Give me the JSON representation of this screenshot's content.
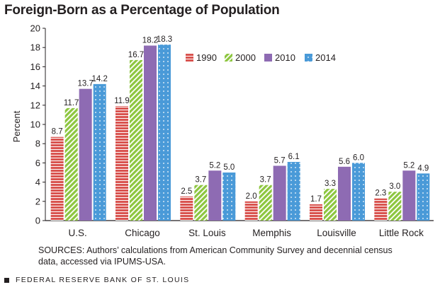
{
  "chart_data": {
    "type": "bar",
    "title": "Foreign-Born as a Percentage of Population",
    "ylabel": "Percent",
    "xlabel": "",
    "ylim": [
      0,
      20
    ],
    "yticks": [
      0,
      2,
      4,
      6,
      8,
      10,
      12,
      14,
      16,
      18,
      20
    ],
    "categories": [
      "U.S.",
      "Chicago",
      "St. Louis",
      "Memphis",
      "Louisville",
      "Little Rock"
    ],
    "series": [
      {
        "name": "1990",
        "values": [
          8.7,
          11.9,
          2.5,
          2.0,
          1.7,
          2.3
        ],
        "color": "#d9534f",
        "pattern": "horizontal-stripes"
      },
      {
        "name": "2000",
        "values": [
          11.7,
          16.7,
          3.7,
          3.7,
          3.3,
          3.0
        ],
        "color": "#8dc63f",
        "pattern": "diagonal-stripes"
      },
      {
        "name": "2010",
        "values": [
          13.7,
          18.2,
          5.2,
          5.7,
          5.6,
          5.2
        ],
        "color": "#8e6bb3",
        "pattern": "solid"
      },
      {
        "name": "2014",
        "values": [
          14.2,
          18.3,
          5.0,
          6.1,
          6.0,
          4.9
        ],
        "color": "#4a9ad8",
        "pattern": "dots"
      }
    ],
    "data_labels": {
      "1990": [
        "8.7",
        "11.9",
        "2.5",
        "2.0",
        "1.7",
        "2.3"
      ],
      "2000": [
        "11.7",
        "16.7",
        "3.7",
        "3.7",
        "3.3",
        "3.0"
      ],
      "2010": [
        "13.7",
        "18.2",
        "5.2",
        "5.7",
        "5.6",
        "5.2"
      ],
      "2014": [
        "14.2",
        "18.3",
        "5.0",
        "6.1",
        "6.0",
        "4.9"
      ]
    },
    "grid": false,
    "legend_position": "top-right"
  },
  "sources": "SOURCES: Authors’ calculations from American Community Survey and decennial census data, accessed via IPUMS-USA.",
  "footer": "FEDERAL RESERVE BANK OF ST. LOUIS"
}
